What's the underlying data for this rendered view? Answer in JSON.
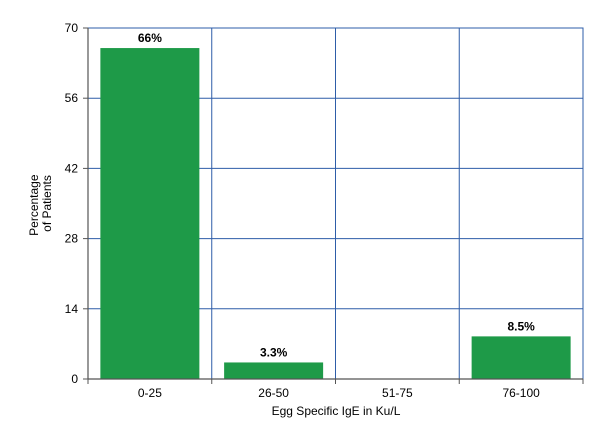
{
  "chart_data": {
    "type": "bar",
    "categories": [
      "0-25",
      "26-50",
      "51-75",
      "76-100"
    ],
    "values": [
      66,
      3.3,
      0,
      8.5
    ],
    "data_labels": [
      "66%",
      "3.3%",
      "",
      "8.5%"
    ],
    "title": "",
    "xlabel": "Egg Specific IgE in Ku/L",
    "ylabel_lines": [
      "Percentage",
      "of Patients"
    ],
    "ylim": [
      0,
      70
    ],
    "yticks": [
      0,
      14,
      28,
      42,
      56,
      70
    ],
    "grid": true,
    "colors": {
      "bar": "#1e9a48",
      "grid": "#2e5da8",
      "axis": "#555555"
    }
  }
}
